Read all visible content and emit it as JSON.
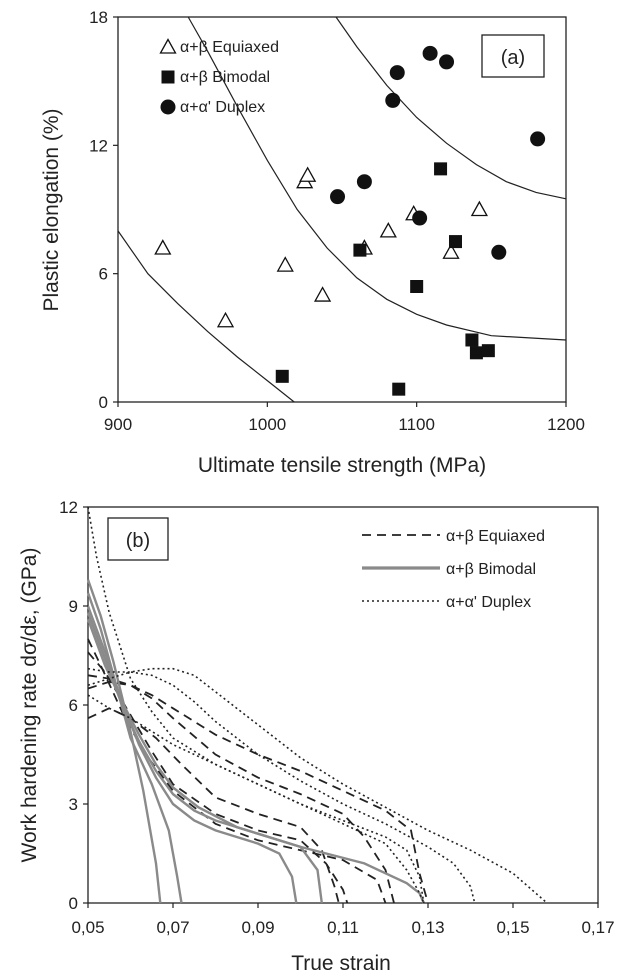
{
  "colors": {
    "marker": "#111111",
    "line": "#222222",
    "bimodal_line": "#8a8a8a",
    "background": "#ffffff"
  },
  "chart_data": [
    {
      "panel": "(a)",
      "type": "scatter",
      "xlabel": "Ultimate tensile strength (MPa)",
      "ylabel": "Plastic elongation (%)",
      "xlim": [
        900,
        1200
      ],
      "ylim": [
        0,
        18
      ],
      "xticks": [
        "900",
        "1000",
        "1100",
        "1200"
      ],
      "yticks": [
        "0",
        "6",
        "12",
        "18"
      ],
      "legend_position": "top-left",
      "series": [
        {
          "name": "α+β Equiaxed",
          "marker": "open-triangle",
          "points": [
            [
              930,
              7.2
            ],
            [
              972,
              3.8
            ],
            [
              1012,
              6.4
            ],
            [
              1025,
              10.3
            ],
            [
              1027,
              10.6
            ],
            [
              1037,
              5.0
            ],
            [
              1065,
              7.2
            ],
            [
              1081,
              8.0
            ],
            [
              1098,
              8.8
            ],
            [
              1123,
              7.0
            ],
            [
              1142,
              9.0
            ]
          ]
        },
        {
          "name": "α+β Bimodal",
          "marker": "filled-square",
          "points": [
            [
              1010,
              1.2
            ],
            [
              1062,
              7.1
            ],
            [
              1088,
              0.6
            ],
            [
              1100,
              5.4
            ],
            [
              1116,
              10.9
            ],
            [
              1126,
              7.5
            ],
            [
              1137,
              2.9
            ],
            [
              1140,
              2.3
            ],
            [
              1148,
              2.4
            ]
          ]
        },
        {
          "name": "α+α' Duplex",
          "marker": "filled-circle",
          "points": [
            [
              1047,
              9.6
            ],
            [
              1065,
              10.3
            ],
            [
              1084,
              14.1
            ],
            [
              1087,
              15.4
            ],
            [
              1102,
              8.6
            ],
            [
              1109,
              16.3
            ],
            [
              1120,
              15.9
            ],
            [
              1155,
              7.0
            ],
            [
              1181,
              12.3
            ]
          ]
        }
      ],
      "curves": [
        [
          [
            900,
            8.0
          ],
          [
            920,
            6.0
          ],
          [
            940,
            4.6
          ],
          [
            960,
            3.3
          ],
          [
            980,
            2.1
          ],
          [
            1000,
            1.0
          ],
          [
            1018,
            0
          ]
        ],
        [
          [
            947,
            18
          ],
          [
            960,
            16.4
          ],
          [
            980,
            13.8
          ],
          [
            1000,
            11.3
          ],
          [
            1020,
            9.0
          ],
          [
            1040,
            7.2
          ],
          [
            1060,
            5.8
          ],
          [
            1080,
            4.8
          ],
          [
            1100,
            4.1
          ],
          [
            1120,
            3.6
          ],
          [
            1150,
            3.1
          ],
          [
            1200,
            2.9
          ]
        ],
        [
          [
            1046,
            18
          ],
          [
            1060,
            16.6
          ],
          [
            1080,
            14.8
          ],
          [
            1100,
            13.3
          ],
          [
            1120,
            12.1
          ],
          [
            1140,
            11.1
          ],
          [
            1160,
            10.3
          ],
          [
            1180,
            9.8
          ],
          [
            1200,
            9.5
          ]
        ]
      ]
    },
    {
      "panel": "(b)",
      "type": "line",
      "xlabel": "True strain",
      "ylabel": "Work hardening rate dσ/dε, (GPa)",
      "xlim": [
        0.05,
        0.17
      ],
      "ylim": [
        0,
        12
      ],
      "xticks": [
        "0,05",
        "0,07",
        "0,09",
        "0,11",
        "0,13",
        "0,15",
        "0,17"
      ],
      "yticks": [
        "0",
        "3",
        "6",
        "9",
        "12"
      ],
      "legend_position": "top-right",
      "series": [
        {
          "name": "α+β Equiaxed",
          "style": "dashed",
          "curves": [
            [
              [
                0.05,
                6.9
              ],
              [
                0.055,
                6.8
              ],
              [
                0.06,
                6.6
              ],
              [
                0.065,
                6.3
              ],
              [
                0.07,
                5.9
              ],
              [
                0.08,
                5.1
              ],
              [
                0.09,
                4.5
              ],
              [
                0.1,
                4.0
              ],
              [
                0.11,
                3.4
              ],
              [
                0.12,
                2.8
              ],
              [
                0.126,
                2.2
              ],
              [
                0.128,
                0.9
              ],
              [
                0.13,
                0
              ]
            ],
            [
              [
                0.05,
                6.5
              ],
              [
                0.055,
                6.7
              ],
              [
                0.06,
                6.6
              ],
              [
                0.065,
                6.2
              ],
              [
                0.07,
                5.6
              ],
              [
                0.08,
                4.5
              ],
              [
                0.09,
                3.8
              ],
              [
                0.1,
                3.3
              ],
              [
                0.11,
                2.7
              ],
              [
                0.115,
                2.0
              ],
              [
                0.12,
                1.0
              ],
              [
                0.122,
                0
              ]
            ],
            [
              [
                0.05,
                7.6
              ],
              [
                0.054,
                7.0
              ],
              [
                0.06,
                5.7
              ],
              [
                0.065,
                4.6
              ],
              [
                0.07,
                3.6
              ],
              [
                0.08,
                2.7
              ],
              [
                0.09,
                2.2
              ],
              [
                0.1,
                1.9
              ],
              [
                0.106,
                1.2
              ],
              [
                0.11,
                0.4
              ],
              [
                0.111,
                0
              ]
            ],
            [
              [
                0.05,
                8.0
              ],
              [
                0.053,
                7.2
              ],
              [
                0.058,
                5.8
              ],
              [
                0.063,
                4.6
              ],
              [
                0.07,
                3.4
              ],
              [
                0.08,
                2.4
              ],
              [
                0.09,
                1.9
              ],
              [
                0.1,
                1.6
              ],
              [
                0.11,
                1.3
              ],
              [
                0.118,
                0.7
              ],
              [
                0.12,
                0
              ]
            ],
            [
              [
                0.05,
                5.6
              ],
              [
                0.055,
                5.9
              ],
              [
                0.06,
                5.6
              ],
              [
                0.066,
                5.0
              ],
              [
                0.072,
                4.2
              ],
              [
                0.08,
                3.2
              ],
              [
                0.09,
                2.7
              ],
              [
                0.1,
                2.3
              ],
              [
                0.105,
                1.6
              ],
              [
                0.108,
                0.5
              ],
              [
                0.109,
                0
              ]
            ]
          ]
        },
        {
          "name": "α+β Bimodal",
          "style": "solid",
          "curves": [
            [
              [
                0.05,
                9.8
              ],
              [
                0.053,
                8.7
              ],
              [
                0.056,
                7.3
              ],
              [
                0.06,
                5.2
              ],
              [
                0.063,
                3.4
              ],
              [
                0.066,
                1.2
              ],
              [
                0.067,
                0
              ]
            ],
            [
              [
                0.05,
                9.4
              ],
              [
                0.053,
                8.3
              ],
              [
                0.056,
                6.9
              ],
              [
                0.06,
                5.0
              ],
              [
                0.065,
                3.6
              ],
              [
                0.069,
                2.2
              ],
              [
                0.071,
                0.8
              ],
              [
                0.072,
                0
              ]
            ],
            [
              [
                0.05,
                9.0
              ],
              [
                0.054,
                7.6
              ],
              [
                0.058,
                6.1
              ],
              [
                0.062,
                4.8
              ],
              [
                0.066,
                3.8
              ],
              [
                0.07,
                3.0
              ],
              [
                0.075,
                2.5
              ],
              [
                0.08,
                2.2
              ],
              [
                0.09,
                1.8
              ],
              [
                0.095,
                1.5
              ],
              [
                0.098,
                0.8
              ],
              [
                0.099,
                0
              ]
            ],
            [
              [
                0.05,
                8.8
              ],
              [
                0.054,
                7.4
              ],
              [
                0.058,
                6.0
              ],
              [
                0.062,
                4.9
              ],
              [
                0.066,
                4.0
              ],
              [
                0.07,
                3.3
              ],
              [
                0.075,
                2.8
              ],
              [
                0.08,
                2.5
              ],
              [
                0.09,
                2.1
              ],
              [
                0.1,
                1.7
              ],
              [
                0.104,
                1.0
              ],
              [
                0.105,
                0
              ]
            ],
            [
              [
                0.05,
                8.6
              ],
              [
                0.054,
                7.2
              ],
              [
                0.058,
                6.1
              ],
              [
                0.062,
                5.1
              ],
              [
                0.066,
                4.2
              ],
              [
                0.07,
                3.5
              ],
              [
                0.076,
                2.9
              ],
              [
                0.085,
                2.3
              ],
              [
                0.1,
                1.7
              ],
              [
                0.115,
                1.2
              ],
              [
                0.125,
                0.6
              ],
              [
                0.128,
                0.3
              ],
              [
                0.129,
                0
              ]
            ]
          ]
        },
        {
          "name": "α+α' Duplex",
          "style": "dotted",
          "curves": [
            [
              [
                0.05,
                12.0
              ],
              [
                0.052,
                10.5
              ],
              [
                0.055,
                8.8
              ],
              [
                0.058,
                7.6
              ],
              [
                0.06,
                6.8
              ],
              [
                0.065,
                5.8
              ],
              [
                0.07,
                5.0
              ],
              [
                0.08,
                4.2
              ],
              [
                0.09,
                3.6
              ],
              [
                0.1,
                3.0
              ],
              [
                0.11,
                2.4
              ],
              [
                0.12,
                1.8
              ],
              [
                0.125,
                1.0
              ],
              [
                0.128,
                0.3
              ],
              [
                0.129,
                0
              ]
            ],
            [
              [
                0.05,
                7.1
              ],
              [
                0.055,
                7.0
              ],
              [
                0.06,
                7.0
              ],
              [
                0.065,
                7.1
              ],
              [
                0.07,
                7.1
              ],
              [
                0.075,
                6.9
              ],
              [
                0.08,
                6.4
              ],
              [
                0.09,
                5.4
              ],
              [
                0.1,
                4.4
              ],
              [
                0.11,
                3.6
              ],
              [
                0.12,
                2.9
              ],
              [
                0.13,
                2.2
              ],
              [
                0.14,
                1.6
              ],
              [
                0.15,
                0.9
              ],
              [
                0.158,
                0
              ]
            ],
            [
              [
                0.05,
                6.6
              ],
              [
                0.055,
                6.8
              ],
              [
                0.06,
                7.0
              ],
              [
                0.065,
                6.9
              ],
              [
                0.07,
                6.6
              ],
              [
                0.075,
                6.1
              ],
              [
                0.08,
                5.5
              ],
              [
                0.09,
                4.5
              ],
              [
                0.1,
                3.7
              ],
              [
                0.11,
                3.0
              ],
              [
                0.12,
                2.4
              ],
              [
                0.13,
                1.7
              ],
              [
                0.136,
                1.2
              ],
              [
                0.14,
                0.5
              ],
              [
                0.141,
                0
              ]
            ],
            [
              [
                0.05,
                6.3
              ],
              [
                0.055,
                5.9
              ],
              [
                0.06,
                5.6
              ],
              [
                0.065,
                5.2
              ],
              [
                0.07,
                4.8
              ],
              [
                0.08,
                4.2
              ],
              [
                0.09,
                3.6
              ],
              [
                0.1,
                3.0
              ],
              [
                0.11,
                2.5
              ],
              [
                0.12,
                2.0
              ],
              [
                0.125,
                1.6
              ],
              [
                0.128,
                0.8
              ],
              [
                0.129,
                0
              ]
            ]
          ]
        }
      ]
    }
  ]
}
